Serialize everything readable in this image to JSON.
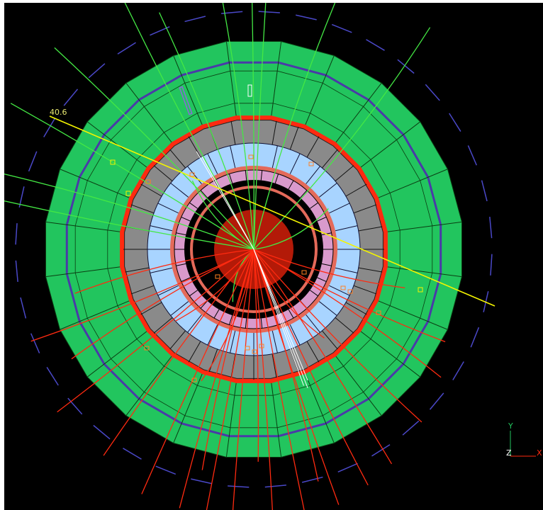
{
  "event_display": {
    "energy_label": "40.6",
    "axes": {
      "y": "Y",
      "z": "Z",
      "x": "X"
    },
    "colors": {
      "background": "#000000",
      "muon_chamber": "#22c55e",
      "muon_chamber_outline": "#0b3d12",
      "solenoid_ring": "#4a3aa8",
      "hcal": "#8a8a8a",
      "ecal": "#a8d4ff",
      "tracker_outer": "#d99acc",
      "tracker_ring": "#e46a5a",
      "core": "#b31a08",
      "red_tracks": "#ff2a10",
      "green_tracks": "#44e844",
      "jet_axis": "#f4f400",
      "muon_dashes": "#4a48c8",
      "white_tracks": "#ffffff"
    },
    "detector": {
      "sectors": 24
    },
    "tracks": {
      "green_count": 14,
      "red_count": 24
    }
  }
}
